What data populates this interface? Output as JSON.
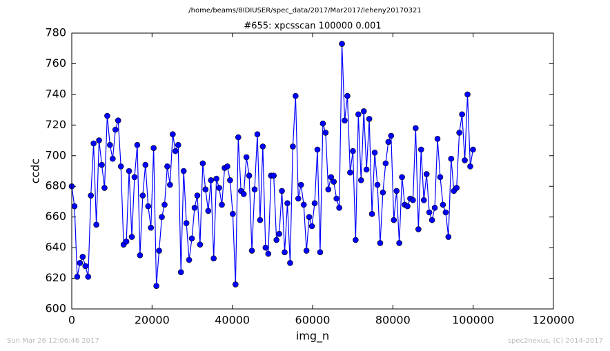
{
  "chart_data": {
    "type": "line",
    "suptitle": "/home/beams/8IDIUSER/spec_data/2017/Mar2017/leheny20170321",
    "title": "#655: xpcsscan 100000 0.001",
    "xlabel": "img_n",
    "ylabel": "ccdc",
    "timestamp": "Sun Mar 26 12:06:46 2017",
    "credit": "spec2nexus, (C) 2014-2017",
    "xlim": [
      0,
      120000
    ],
    "xticks": [
      0,
      20000,
      40000,
      60000,
      80000,
      100000,
      120000
    ],
    "ylim": [
      600,
      780
    ],
    "yticks": [
      600,
      620,
      640,
      660,
      680,
      700,
      720,
      740,
      760,
      780
    ],
    "grid": false,
    "x": [
      0,
      680,
      1360,
      2040,
      2720,
      3400,
      4080,
      4760,
      5440,
      6120,
      6800,
      7480,
      8160,
      8840,
      9520,
      10200,
      10880,
      11560,
      12240,
      12920,
      13600,
      14280,
      14960,
      15640,
      16320,
      17000,
      17680,
      18360,
      19040,
      19720,
      20400,
      21080,
      21760,
      22440,
      23120,
      23800,
      24480,
      25160,
      25840,
      26520,
      27200,
      27880,
      28560,
      29240,
      29920,
      30600,
      31280,
      31960,
      32640,
      33320,
      34000,
      34680,
      35360,
      36040,
      36720,
      37400,
      38080,
      38760,
      39440,
      40120,
      40800,
      41480,
      42160,
      42840,
      43520,
      44200,
      44880,
      45560,
      46240,
      46920,
      47600,
      48280,
      48960,
      49640,
      50320,
      51000,
      51680,
      52360,
      53040,
      53720,
      54400,
      55080,
      55760,
      56440,
      57120,
      57800,
      58480,
      59160,
      59840,
      60520,
      61200,
      61880,
      62560,
      63240,
      63920,
      64600,
      65280,
      65960,
      66640,
      67320,
      68000,
      68680,
      69360,
      70040,
      70720,
      71400,
      72080,
      72760,
      73440,
      74120,
      74800,
      75480,
      76160,
      76840,
      77520,
      78200,
      78880,
      79560,
      80240,
      80920,
      81600,
      82280,
      82960,
      83640,
      84320,
      85000,
      85680,
      86360,
      87040,
      87720,
      88400,
      89080,
      89760,
      90440,
      91120,
      91800,
      92480,
      93160,
      93840,
      94520,
      95200,
      95880,
      96560,
      97240,
      97920,
      98600,
      99280,
      99960
    ],
    "series": [
      {
        "color": "#0000ff",
        "values": [
          680,
          667,
          621,
          630,
          634,
          628,
          621,
          674,
          708,
          655,
          710,
          694,
          679,
          726,
          707,
          698,
          717,
          723,
          693,
          642,
          644,
          690,
          647,
          686,
          707,
          635,
          674,
          694,
          667,
          653,
          705,
          615,
          638,
          660,
          668,
          693,
          681,
          714,
          703,
          707,
          624,
          690,
          656,
          632,
          646,
          666,
          674,
          642,
          695,
          678,
          664,
          684,
          633,
          685,
          679,
          668,
          692,
          693,
          684,
          662,
          616,
          712,
          677,
          675,
          699,
          687,
          638,
          678,
          714,
          658,
          706,
          640,
          636,
          687,
          687,
          645,
          649,
          677,
          637,
          669,
          630,
          706,
          739,
          672,
          681,
          668,
          638,
          660,
          654,
          669,
          704,
          637,
          721,
          715,
          678,
          686,
          683,
          672,
          666,
          773,
          723,
          739,
          689,
          703,
          645,
          727,
          684,
          729,
          691,
          724,
          662,
          702,
          681,
          643,
          676,
          695,
          709,
          713,
          658,
          677,
          643,
          686,
          668,
          667,
          672,
          671,
          718,
          652,
          704,
          671,
          688,
          663,
          658,
          666,
          711,
          686,
          668,
          663,
          647,
          698,
          677,
          679,
          715,
          727,
          697,
          740,
          693,
          704
        ]
      }
    ]
  }
}
